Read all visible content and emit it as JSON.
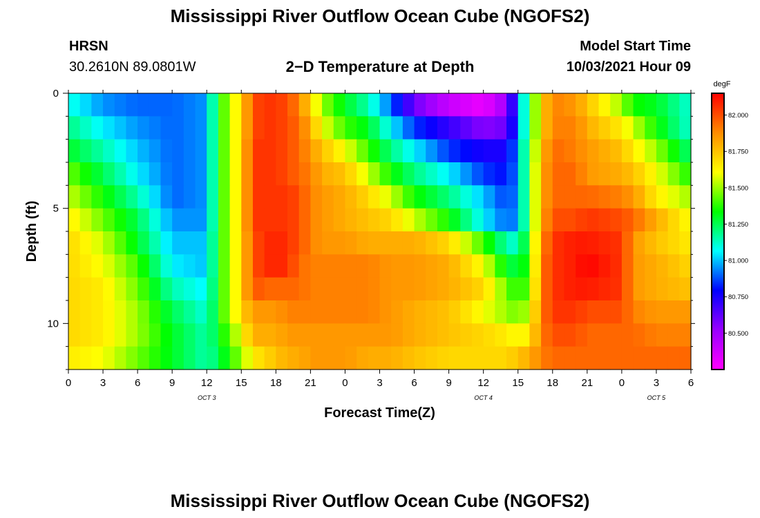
{
  "page": {
    "title_top": "Mississippi River Outflow Ocean Cube (NGOFS2)",
    "title_bottom": "Mississippi River Outflow Ocean Cube (NGOFS2)",
    "station_name": "HRSN",
    "station_coords": "30.2610N  89.0801W",
    "plot_title": "2−D Temperature at Depth",
    "model_start_label": "Model Start Time",
    "model_start_value": "10/03/2021 Hour 09"
  },
  "chart_data": {
    "type": "heatmap",
    "title": "2−D Temperature at Depth",
    "xlabel": "Forecast Time(Z)",
    "ylabel": "Depth (ft)",
    "x_range": [
      0,
      54
    ],
    "y_range": [
      0,
      12
    ],
    "y_inverted": true,
    "x_ticks": [
      0,
      3,
      6,
      9,
      12,
      15,
      18,
      21,
      24,
      27,
      30,
      33,
      36,
      39,
      42,
      45,
      48,
      51,
      54
    ],
    "x_tick_labels": [
      "0",
      "3",
      "6",
      "9",
      "12",
      "15",
      "18",
      "21",
      "0",
      "3",
      "6",
      "9",
      "12",
      "15",
      "18",
      "21",
      "0",
      "3",
      "6"
    ],
    "date_labels": [
      {
        "x": 12,
        "text": "OCT 3"
      },
      {
        "x": 36,
        "text": "OCT 4"
      },
      {
        "x": 51,
        "text": "OCT 5"
      }
    ],
    "y_ticks": [
      0,
      5,
      10
    ],
    "y_tick_labels": [
      "0",
      "5",
      "10"
    ],
    "colorbar": {
      "unit": "degF",
      "range": [
        80.25,
        82.15
      ],
      "tick_values": [
        80.5,
        80.75,
        81.0,
        81.25,
        81.5,
        81.75,
        82.0
      ],
      "tick_labels": [
        "80.500",
        "80.750",
        "81.000",
        "81.250",
        "81.500",
        "81.750",
        "82.000"
      ],
      "colors": [
        "#ff00ff",
        "#9900ff",
        "#0000ff",
        "#00ffff",
        "#00ff00",
        "#ffff00",
        "#ff8c00",
        "#ff0000"
      ]
    },
    "depth_levels": [
      0.5,
      1.5,
      2.5,
      3.5,
      4.5,
      5.5,
      6.5,
      7.5,
      8.5,
      9.5,
      10.5,
      11.5
    ],
    "hour_knots": [
      0,
      3,
      6,
      9,
      12,
      13,
      15,
      16,
      17,
      18,
      19,
      20,
      21,
      22,
      24,
      26,
      28,
      30,
      33,
      36,
      38,
      39,
      40,
      41,
      42,
      44,
      45,
      48,
      49,
      51,
      54
    ],
    "temperature_degF": [
      [
        81.1,
        80.95,
        80.9,
        80.9,
        80.95,
        81.35,
        81.7,
        82.0,
        82.05,
        82.05,
        82.0,
        81.9,
        81.7,
        81.5,
        81.3,
        81.15,
        80.9,
        80.6,
        80.4,
        80.3,
        80.5,
        80.9,
        81.3,
        81.7,
        81.9,
        81.85,
        81.75,
        81.5,
        81.35,
        81.3,
        81.1
      ],
      [
        81.2,
        81.05,
        80.95,
        80.9,
        80.95,
        81.35,
        81.7,
        82.0,
        82.05,
        82.05,
        82.0,
        81.95,
        81.8,
        81.6,
        81.4,
        81.3,
        81.05,
        80.85,
        80.7,
        80.55,
        80.6,
        80.9,
        81.3,
        81.7,
        81.9,
        81.9,
        81.8,
        81.65,
        81.55,
        81.35,
        81.1
      ],
      [
        81.3,
        81.15,
        81.0,
        80.9,
        80.95,
        81.35,
        81.7,
        82.05,
        82.05,
        82.05,
        82.0,
        81.95,
        81.85,
        81.75,
        81.6,
        81.4,
        81.2,
        81.05,
        80.85,
        80.75,
        80.75,
        80.95,
        81.35,
        81.75,
        81.95,
        81.9,
        81.85,
        81.75,
        81.65,
        81.5,
        81.2
      ],
      [
        81.45,
        81.25,
        81.05,
        80.9,
        80.95,
        81.35,
        81.7,
        82.05,
        82.05,
        82.05,
        82.0,
        81.95,
        81.9,
        81.8,
        81.75,
        81.55,
        81.35,
        81.2,
        81.05,
        80.85,
        80.8,
        80.95,
        81.35,
        81.8,
        81.95,
        81.95,
        81.85,
        81.8,
        81.75,
        81.6,
        81.35
      ],
      [
        81.55,
        81.35,
        81.15,
        80.9,
        80.95,
        81.35,
        81.7,
        82.05,
        82.05,
        82.05,
        82.05,
        82.0,
        81.9,
        81.85,
        81.8,
        81.7,
        81.55,
        81.35,
        81.2,
        81.0,
        80.85,
        80.95,
        81.35,
        81.8,
        81.95,
        81.95,
        81.95,
        81.9,
        81.85,
        81.65,
        81.5
      ],
      [
        81.65,
        81.45,
        81.25,
        80.95,
        80.95,
        81.35,
        81.7,
        82.05,
        82.05,
        82.05,
        82.05,
        82.0,
        81.9,
        81.85,
        81.8,
        81.75,
        81.7,
        81.55,
        81.35,
        81.05,
        80.9,
        80.95,
        81.35,
        81.8,
        82.0,
        82.0,
        82.05,
        82.0,
        81.95,
        81.8,
        81.6
      ],
      [
        81.7,
        81.55,
        81.3,
        81.0,
        81.0,
        81.35,
        81.7,
        82.0,
        82.05,
        82.1,
        82.05,
        82.0,
        81.9,
        81.85,
        81.85,
        81.8,
        81.8,
        81.8,
        81.7,
        81.4,
        81.15,
        81.1,
        81.4,
        81.85,
        82.05,
        82.1,
        82.1,
        82.05,
        81.85,
        81.75,
        81.65
      ],
      [
        81.7,
        81.6,
        81.4,
        81.05,
        81.0,
        81.35,
        81.7,
        82.0,
        82.05,
        82.1,
        82.05,
        81.95,
        81.9,
        81.9,
        81.9,
        81.9,
        81.85,
        81.85,
        81.8,
        81.6,
        81.3,
        81.25,
        81.4,
        81.9,
        82.05,
        82.1,
        82.15,
        82.05,
        81.85,
        81.8,
        81.7
      ],
      [
        81.7,
        81.65,
        81.45,
        81.15,
        81.05,
        81.35,
        81.7,
        82.0,
        81.95,
        81.95,
        81.95,
        81.95,
        81.9,
        81.9,
        81.9,
        81.9,
        81.85,
        81.85,
        81.8,
        81.7,
        81.45,
        81.35,
        81.45,
        81.9,
        82.05,
        82.1,
        82.1,
        82.05,
        81.85,
        81.8,
        81.75
      ],
      [
        81.7,
        81.65,
        81.5,
        81.25,
        81.1,
        81.35,
        81.7,
        81.85,
        81.85,
        81.85,
        81.9,
        81.9,
        81.9,
        81.9,
        81.9,
        81.9,
        81.85,
        81.8,
        81.75,
        81.6,
        81.5,
        81.45,
        81.55,
        81.9,
        82.05,
        82.05,
        82.0,
        82.0,
        81.9,
        81.85,
        81.85
      ],
      [
        81.7,
        81.65,
        81.5,
        81.3,
        81.15,
        81.3,
        81.6,
        81.8,
        81.8,
        81.8,
        81.85,
        81.85,
        81.85,
        81.85,
        81.85,
        81.85,
        81.85,
        81.8,
        81.75,
        81.7,
        81.65,
        81.6,
        81.65,
        81.9,
        82.0,
        82.0,
        81.95,
        81.95,
        81.95,
        81.9,
        81.9
      ],
      [
        81.65,
        81.6,
        81.45,
        81.3,
        81.15,
        81.25,
        81.5,
        81.65,
        81.7,
        81.75,
        81.8,
        81.8,
        81.85,
        81.85,
        81.85,
        81.8,
        81.8,
        81.75,
        81.7,
        81.7,
        81.7,
        81.75,
        81.8,
        81.9,
        81.95,
        81.95,
        81.95,
        81.95,
        81.95,
        81.95,
        81.95
      ]
    ]
  }
}
